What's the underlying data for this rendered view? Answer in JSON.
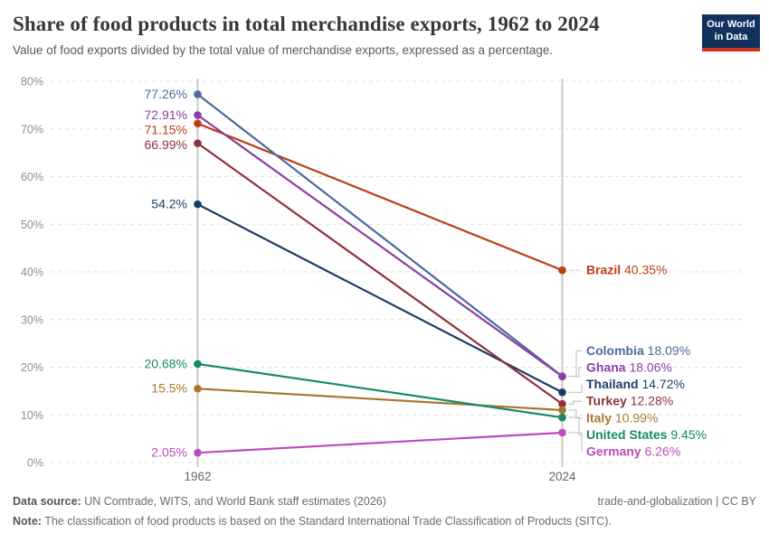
{
  "header": {
    "title": "Share of food products in total merchandise exports, 1962 to 2024",
    "subtitle": "Value of food exports divided by the total value of merchandise exports, expressed as a percentage.",
    "logo": {
      "line1": "Our World",
      "line2": "in Data",
      "bg_color": "#12325e",
      "stripe_color": "#d5311f"
    }
  },
  "chart_data": {
    "type": "line",
    "variant": "slope-chart",
    "title": "Share of food products in total merchandise exports, 1962 to 2024",
    "x_categories": [
      "1962",
      "2024"
    ],
    "series": [
      {
        "name": "Brazil",
        "color": "#be3d12",
        "values": [
          71.15,
          40.35
        ],
        "start_label": "71.15%",
        "end_label": "40.35%"
      },
      {
        "name": "Colombia",
        "color": "#4c6a9c",
        "values": [
          77.26,
          18.09
        ],
        "start_label": "77.26%",
        "end_label": "18.09%"
      },
      {
        "name": "Ghana",
        "color": "#8a3fa4",
        "values": [
          72.91,
          18.06
        ],
        "start_label": "72.91%",
        "end_label": "18.06%"
      },
      {
        "name": "Thailand",
        "color": "#1d3d63",
        "values": [
          54.2,
          14.72
        ],
        "start_label": "54.2%",
        "end_label": "14.72%"
      },
      {
        "name": "Turkey",
        "color": "#90303d",
        "values": [
          66.99,
          12.28
        ],
        "start_label": "66.99%",
        "end_label": "12.28%"
      },
      {
        "name": "Italy",
        "color": "#a8772f",
        "values": [
          15.5,
          10.99
        ],
        "start_label": "15.5%",
        "end_label": "10.99%"
      },
      {
        "name": "United States",
        "color": "#148a66",
        "values": [
          20.68,
          9.45
        ],
        "start_label": "20.68%",
        "end_label": "9.45%"
      },
      {
        "name": "Germany",
        "color": "#ba4dbc",
        "values": [
          2.05,
          6.26
        ],
        "start_label": "2.05%",
        "end_label": "6.26%"
      }
    ],
    "ylim": [
      0,
      80
    ],
    "yticks": [
      "0%",
      "10%",
      "20%",
      "30%",
      "40%",
      "50%",
      "60%",
      "70%",
      "80%"
    ],
    "grid": "dashed-horizontal",
    "legend_position": "right-inline-labels",
    "colors": {
      "gridline": "#e0e0e0",
      "axis_line": "#c8c8c8",
      "connector": "#c9c9c9",
      "tick_text": "#8e8e8e",
      "year_text": "#666666"
    }
  },
  "footer": {
    "source_label": "Data source:",
    "source_text": " UN Comtrade, WITS, and World Bank staff estimates (2026)",
    "permalink": "trade-and-globalization | CC BY",
    "note_label": "Note:",
    "note_text": " The classification of food products is based on the Standard International Trade Classification of Products (SITC)."
  }
}
